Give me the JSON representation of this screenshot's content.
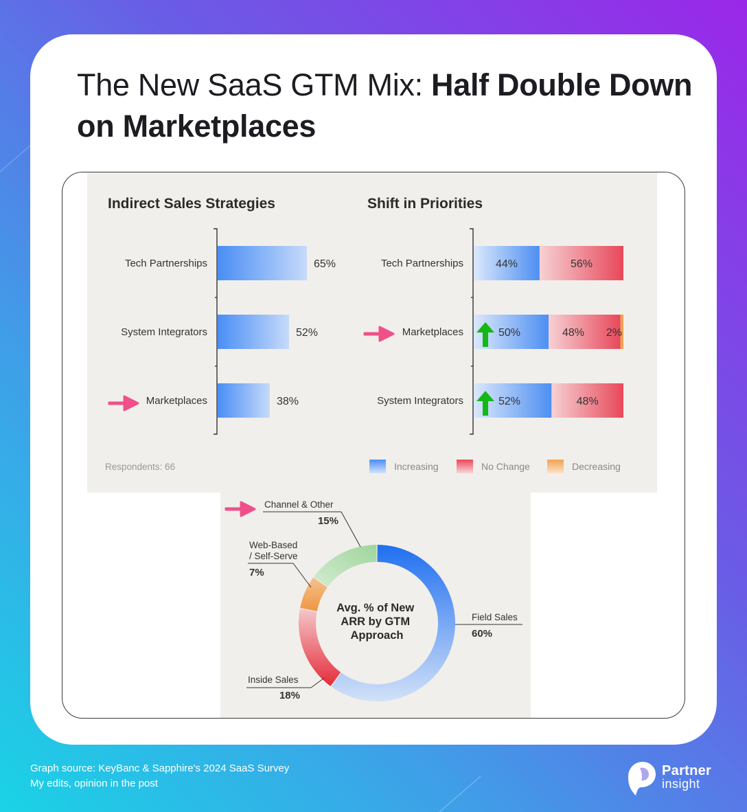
{
  "title": {
    "regular": "The New SaaS GTM Mix: ",
    "bold": "Half Double Down on Marketplaces"
  },
  "colors": {
    "increasing": "#4a8ef5",
    "no_change": "#e8485a",
    "decreasing": "#f0a253",
    "arrow_highlight": "#f0508a",
    "up_arrow": "#14b814"
  },
  "chart_data": [
    {
      "type": "bar",
      "title": "Indirect Sales Strategies",
      "orientation": "horizontal",
      "categories": [
        "Tech Partnerships",
        "System Integrators",
        "Marketplaces"
      ],
      "values": [
        65,
        52,
        38
      ],
      "labels": [
        "65%",
        "52%",
        "38%"
      ],
      "xlim": [
        0,
        100
      ],
      "highlighted": "Marketplaces",
      "note": "Respondents: 66"
    },
    {
      "type": "bar",
      "stacked": true,
      "orientation": "horizontal",
      "title": "Shift in Priorities",
      "categories": [
        "Tech Partnerships",
        "Marketplaces",
        "System Integrators"
      ],
      "series": [
        {
          "name": "Increasing",
          "values": [
            44,
            50,
            52
          ],
          "labels": [
            "44%",
            "50%",
            "52%"
          ]
        },
        {
          "name": "No Change",
          "values": [
            56,
            48,
            48
          ],
          "labels": [
            "56%",
            "48%",
            "48%"
          ]
        },
        {
          "name": "Decreasing",
          "values": [
            0,
            2,
            0
          ],
          "labels": [
            "",
            "2%",
            ""
          ]
        }
      ],
      "xlim": [
        0,
        100
      ],
      "highlighted": "Marketplaces",
      "up_arrows": [
        "Marketplaces",
        "System Integrators"
      ],
      "legend_position": "bottom-right"
    },
    {
      "type": "pie",
      "donut": true,
      "center_label": [
        "Avg. % of New",
        "ARR by GTM",
        "Approach"
      ],
      "slices": [
        {
          "label": "Field Sales",
          "value": 60,
          "value_label": "60%"
        },
        {
          "label": "Inside Sales",
          "value": 18,
          "value_label": "18%"
        },
        {
          "label": "Web-Based\n/ Self-Serve",
          "value": 7,
          "value_label": "7%"
        },
        {
          "label": "Channel & Other",
          "value": 15,
          "value_label": "15%"
        }
      ],
      "highlighted": "Channel & Other"
    }
  ],
  "footer": {
    "line1": "Graph source:  KeyBanc & Sapphire's 2024 SaaS Survey",
    "line2": "My edits, opinion in the post"
  },
  "brand": {
    "name": "Partner",
    "sub": "insight"
  }
}
